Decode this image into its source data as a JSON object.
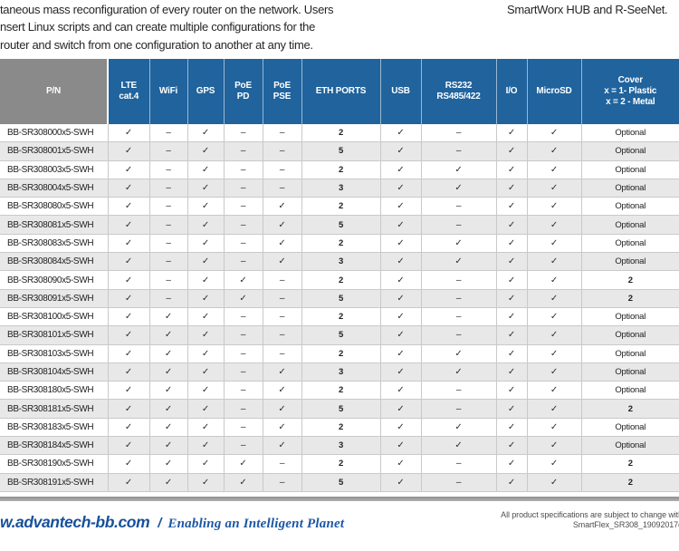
{
  "intro": {
    "left_lines": [
      "taneous mass reconfiguration of every router on the network. Users",
      "nsert Linux scripts and can create multiple configurations for the",
      "router and switch from one configuration to another at any time."
    ],
    "right_text": "SmartWorx HUB and R-SeeNet."
  },
  "table": {
    "columns": [
      {
        "id": "pn",
        "label_lines": [
          "P/N"
        ]
      },
      {
        "id": "lte",
        "label_lines": [
          "LTE",
          "cat.4"
        ]
      },
      {
        "id": "wifi",
        "label_lines": [
          "WiFi"
        ]
      },
      {
        "id": "gps",
        "label_lines": [
          "GPS"
        ]
      },
      {
        "id": "poe-pd",
        "label_lines": [
          "PoE",
          "PD"
        ]
      },
      {
        "id": "poe-pse",
        "label_lines": [
          "PoE",
          "PSE"
        ]
      },
      {
        "id": "eth",
        "label_lines": [
          "ETH PORTS"
        ]
      },
      {
        "id": "usb",
        "label_lines": [
          "USB"
        ]
      },
      {
        "id": "rs232",
        "label_lines": [
          "RS232",
          "RS485/422"
        ]
      },
      {
        "id": "io",
        "label_lines": [
          "I/O"
        ]
      },
      {
        "id": "microsd",
        "label_lines": [
          "MicroSD"
        ]
      },
      {
        "id": "cover",
        "label_lines": [
          "Cover",
          "x = 1- Plastic",
          "x = 2 - Metal"
        ]
      }
    ],
    "check_symbol": "✓",
    "dash_symbol": "–",
    "rows": [
      {
        "pn": "BB-SR308000x5-SWH",
        "cells": [
          "✓",
          "–",
          "✓",
          "–",
          "–",
          "2",
          "✓",
          "–",
          "✓",
          "✓",
          "Optional"
        ]
      },
      {
        "pn": "BB-SR308001x5-SWH",
        "cells": [
          "✓",
          "–",
          "✓",
          "–",
          "–",
          "5",
          "✓",
          "–",
          "✓",
          "✓",
          "Optional"
        ]
      },
      {
        "pn": "BB-SR308003x5-SWH",
        "cells": [
          "✓",
          "–",
          "✓",
          "–",
          "–",
          "2",
          "✓",
          "✓",
          "✓",
          "✓",
          "Optional"
        ]
      },
      {
        "pn": "BB-SR308004x5-SWH",
        "cells": [
          "✓",
          "–",
          "✓",
          "–",
          "–",
          "3",
          "✓",
          "✓",
          "✓",
          "✓",
          "Optional"
        ]
      },
      {
        "pn": "BB-SR308080x5-SWH",
        "cells": [
          "✓",
          "–",
          "✓",
          "–",
          "✓",
          "2",
          "✓",
          "–",
          "✓",
          "✓",
          "Optional"
        ]
      },
      {
        "pn": "BB-SR308081x5-SWH",
        "cells": [
          "✓",
          "–",
          "✓",
          "–",
          "✓",
          "5",
          "✓",
          "–",
          "✓",
          "✓",
          "Optional"
        ]
      },
      {
        "pn": "BB-SR308083x5-SWH",
        "cells": [
          "✓",
          "–",
          "✓",
          "–",
          "✓",
          "2",
          "✓",
          "✓",
          "✓",
          "✓",
          "Optional"
        ]
      },
      {
        "pn": "BB-SR308084x5-SWH",
        "cells": [
          "✓",
          "–",
          "✓",
          "–",
          "✓",
          "3",
          "✓",
          "✓",
          "✓",
          "✓",
          "Optional"
        ]
      },
      {
        "pn": "BB-SR308090x5-SWH",
        "cells": [
          "✓",
          "–",
          "✓",
          "✓",
          "–",
          "2",
          "✓",
          "–",
          "✓",
          "✓",
          "2"
        ]
      },
      {
        "pn": "BB-SR308091x5-SWH",
        "cells": [
          "✓",
          "–",
          "✓",
          "✓",
          "–",
          "5",
          "✓",
          "–",
          "✓",
          "✓",
          "2"
        ]
      },
      {
        "pn": "BB-SR308100x5-SWH",
        "cells": [
          "✓",
          "✓",
          "✓",
          "–",
          "–",
          "2",
          "✓",
          "–",
          "✓",
          "✓",
          "Optional"
        ]
      },
      {
        "pn": "BB-SR308101x5-SWH",
        "cells": [
          "✓",
          "✓",
          "✓",
          "–",
          "–",
          "5",
          "✓",
          "–",
          "✓",
          "✓",
          "Optional"
        ]
      },
      {
        "pn": "BB-SR308103x5-SWH",
        "cells": [
          "✓",
          "✓",
          "✓",
          "–",
          "–",
          "2",
          "✓",
          "✓",
          "✓",
          "✓",
          "Optional"
        ]
      },
      {
        "pn": "BB-SR308104x5-SWH",
        "cells": [
          "✓",
          "✓",
          "✓",
          "–",
          "✓",
          "3",
          "✓",
          "✓",
          "✓",
          "✓",
          "Optional"
        ]
      },
      {
        "pn": "BB-SR308180x5-SWH",
        "cells": [
          "✓",
          "✓",
          "✓",
          "–",
          "✓",
          "2",
          "✓",
          "–",
          "✓",
          "✓",
          "Optional"
        ]
      },
      {
        "pn": "BB-SR308181x5-SWH",
        "cells": [
          "✓",
          "✓",
          "✓",
          "–",
          "✓",
          "5",
          "✓",
          "–",
          "✓",
          "✓",
          "2"
        ]
      },
      {
        "pn": "BB-SR308183x5-SWH",
        "cells": [
          "✓",
          "✓",
          "✓",
          "–",
          "✓",
          "2",
          "✓",
          "✓",
          "✓",
          "✓",
          "Optional"
        ]
      },
      {
        "pn": "BB-SR308184x5-SWH",
        "cells": [
          "✓",
          "✓",
          "✓",
          "–",
          "✓",
          "3",
          "✓",
          "✓",
          "✓",
          "✓",
          "Optional"
        ]
      },
      {
        "pn": "BB-SR308190x5-SWH",
        "cells": [
          "✓",
          "✓",
          "✓",
          "✓",
          "–",
          "2",
          "✓",
          "–",
          "✓",
          "✓",
          "2"
        ]
      },
      {
        "pn": "BB-SR308191x5-SWH",
        "cells": [
          "✓",
          "✓",
          "✓",
          "✓",
          "–",
          "5",
          "✓",
          "–",
          "✓",
          "✓",
          "2"
        ]
      }
    ]
  },
  "footer": {
    "website": "w.advantech-bb.com",
    "separator": "/",
    "tagline": "Enabling an Intelligent Planet",
    "note_line1": "All product specifications are subject to change with",
    "note_line2": "SmartFlex_SR308_19092017d"
  },
  "colors": {
    "header_blue": "#20639D",
    "pn_header_gray": "#8A8A8A",
    "row_alt_gray": "#E8E8E8",
    "footer_navy": "#17519A"
  }
}
